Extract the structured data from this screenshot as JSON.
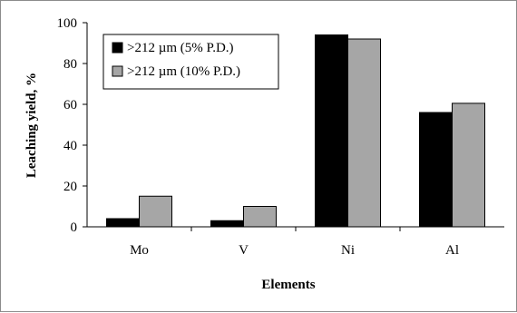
{
  "chart_data": {
    "type": "bar",
    "title": "",
    "xlabel": "Elements",
    "ylabel": "Leaching yield, %",
    "categories": [
      "Mo",
      "V",
      "Ni",
      "Al"
    ],
    "series": [
      {
        "name": ">212 µm (5% P.D.)",
        "values": [
          4,
          3,
          94,
          56
        ],
        "color": "#000000"
      },
      {
        "name": ">212 µm (10% P.D.)",
        "values": [
          15,
          10,
          92,
          60.5
        ],
        "color": "#a6a6a6"
      }
    ],
    "ylim": [
      0,
      100
    ],
    "yticks": [
      "0",
      "20",
      "40",
      "60",
      "80",
      "100"
    ],
    "grid": false,
    "legend_position": "top-left"
  }
}
